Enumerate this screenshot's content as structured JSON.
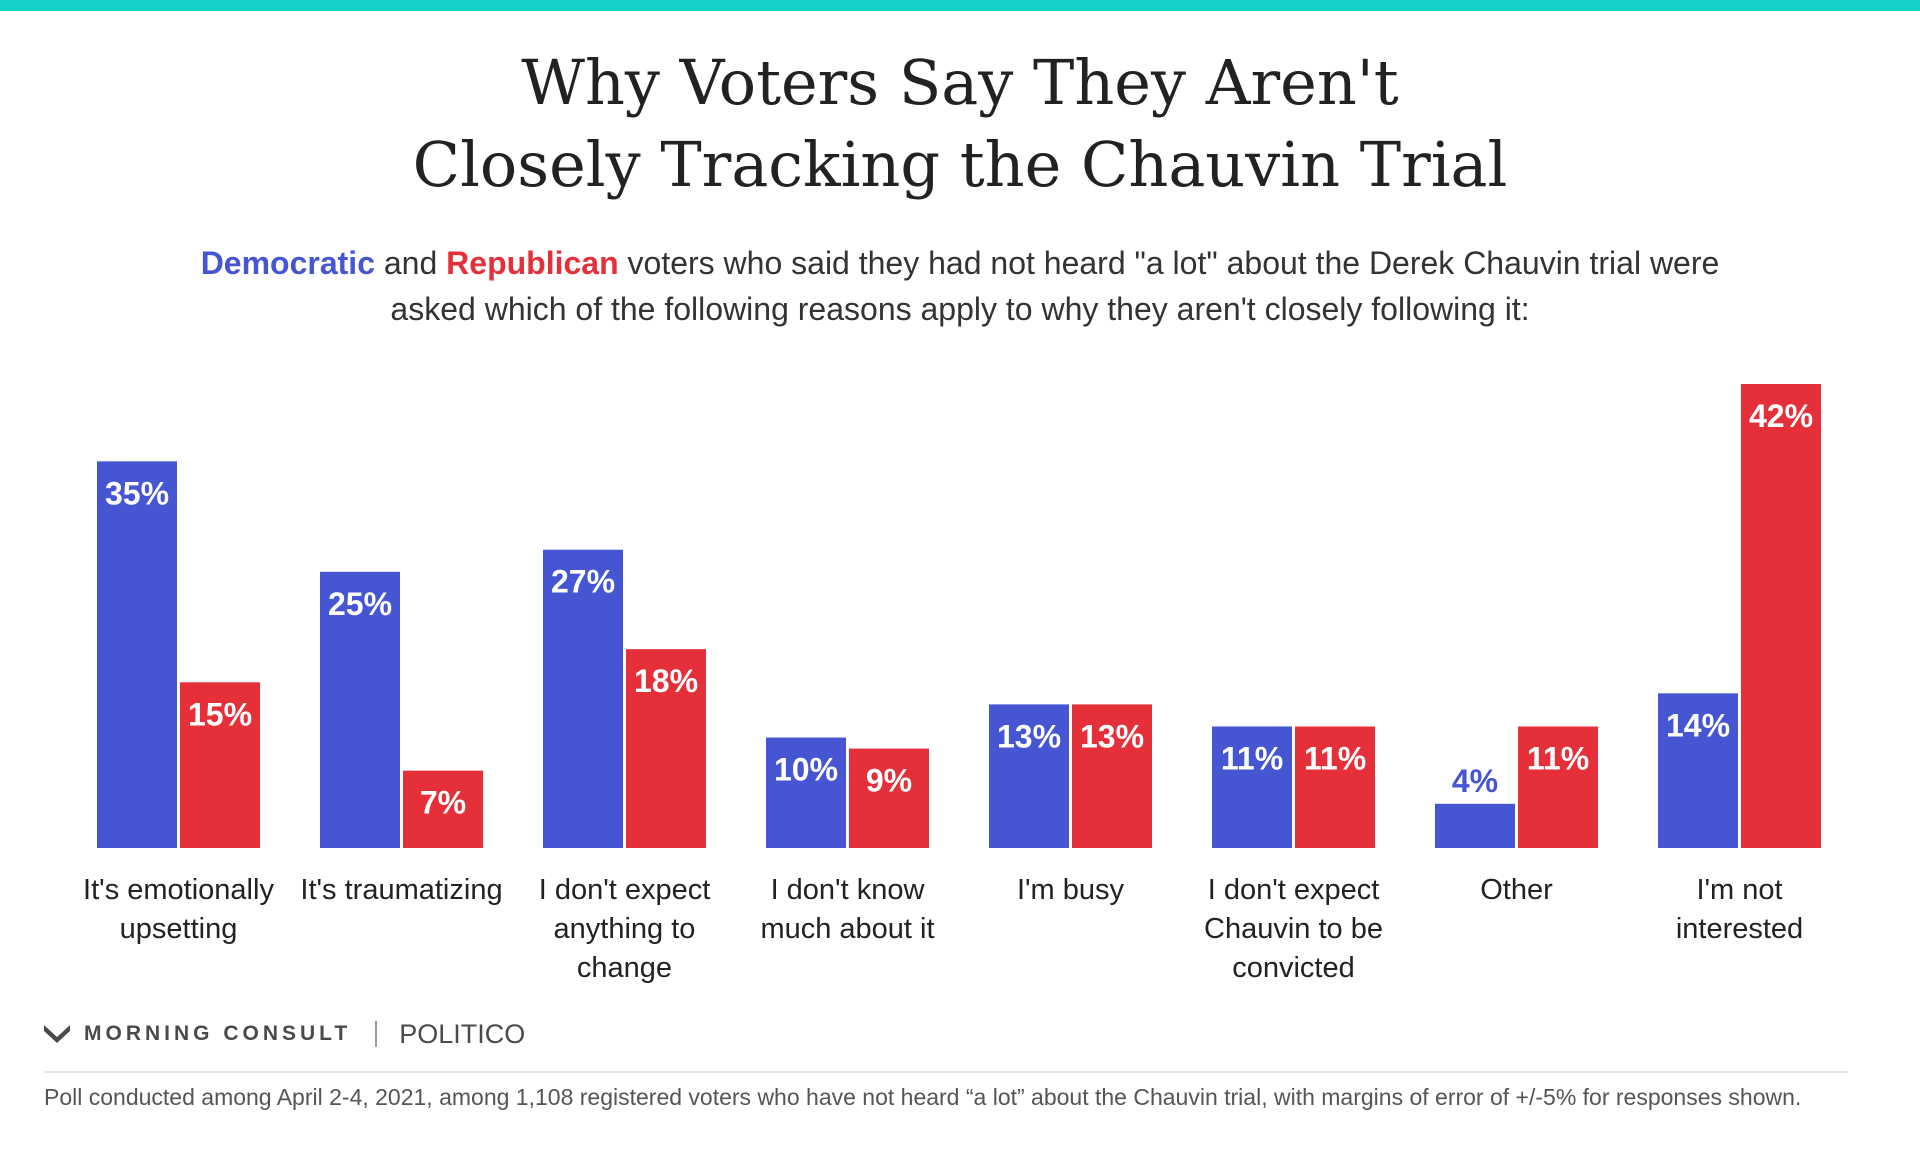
{
  "header": {
    "title_line1": "Why Voters Say They Aren't",
    "title_line2": "Closely Tracking the Chauvin Trial",
    "subtitle_dem": "Democratic",
    "subtitle_and": " and ",
    "subtitle_rep": "Republican",
    "subtitle_rest": " voters who said they had not heard \"a lot\" about the Derek Chauvin trial were asked which of the following reasons apply to why they aren't closely following it:"
  },
  "colors": {
    "accent_bar": "#14d1c8",
    "democratic": "#4655d2",
    "republican": "#e5303a"
  },
  "chart_data": {
    "type": "bar",
    "categories": [
      [
        "It's emotionally",
        "upsetting"
      ],
      [
        "It's traumatizing"
      ],
      [
        "I don't expect",
        "anything to",
        "change"
      ],
      [
        "I don't know",
        "much about it"
      ],
      [
        "I'm busy"
      ],
      [
        "I don't expect",
        "Chauvin to be",
        "convicted"
      ],
      [
        "Other"
      ],
      [
        "I'm not",
        "interested"
      ]
    ],
    "series": [
      {
        "name": "Democratic",
        "color": "#4655d2",
        "values": [
          35,
          25,
          27,
          10,
          13,
          11,
          4,
          14
        ]
      },
      {
        "name": "Republican",
        "color": "#e5303a",
        "values": [
          15,
          7,
          18,
          9,
          13,
          11,
          11,
          42
        ]
      }
    ],
    "value_suffix": "%",
    "ylim": [
      0,
      42
    ],
    "grid": false,
    "legend": "none"
  },
  "branding": {
    "company": "MORNING CONSULT",
    "partner": "POLITICO"
  },
  "footnote": "Poll conducted among April 2-4, 2021, among 1,108 registered voters who have not heard “a lot” about the Chauvin trial, with margins of error of +/-5% for responses shown."
}
